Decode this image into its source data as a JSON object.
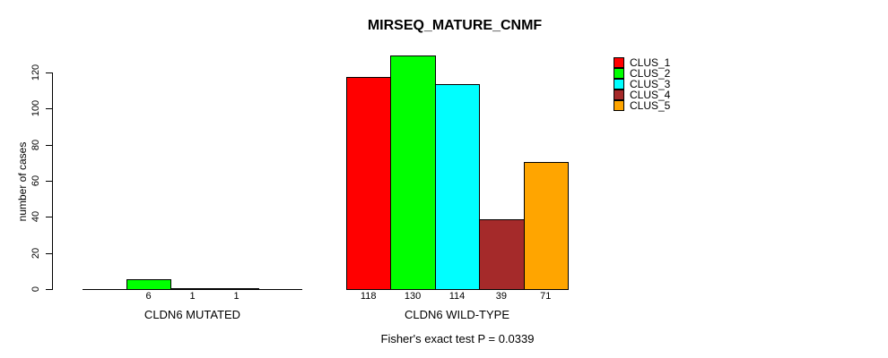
{
  "chart_data": {
    "type": "bar",
    "title": "MIRSEQ_MATURE_CNMF",
    "xlabel": "",
    "ylabel": "number of cases",
    "ylim": [
      0,
      130
    ],
    "yticks": [
      0,
      20,
      40,
      60,
      80,
      100,
      120
    ],
    "grid": false,
    "legend_position": "top-right",
    "categories": [
      "CLUS_1",
      "CLUS_2",
      "CLUS_3",
      "CLUS_4",
      "CLUS_5"
    ],
    "colors": [
      "#FF0000",
      "#00FF00",
      "#00FFFF",
      "#A52A2A",
      "#FFA500"
    ],
    "groups": [
      {
        "label": "CLDN6 MUTATED",
        "values": [
          0,
          6,
          1,
          1,
          0
        ]
      },
      {
        "label": "CLDN6 WILD-TYPE",
        "values": [
          118,
          130,
          114,
          39,
          71
        ]
      }
    ],
    "annotation": "Fisher's exact test P = 0.0339"
  }
}
